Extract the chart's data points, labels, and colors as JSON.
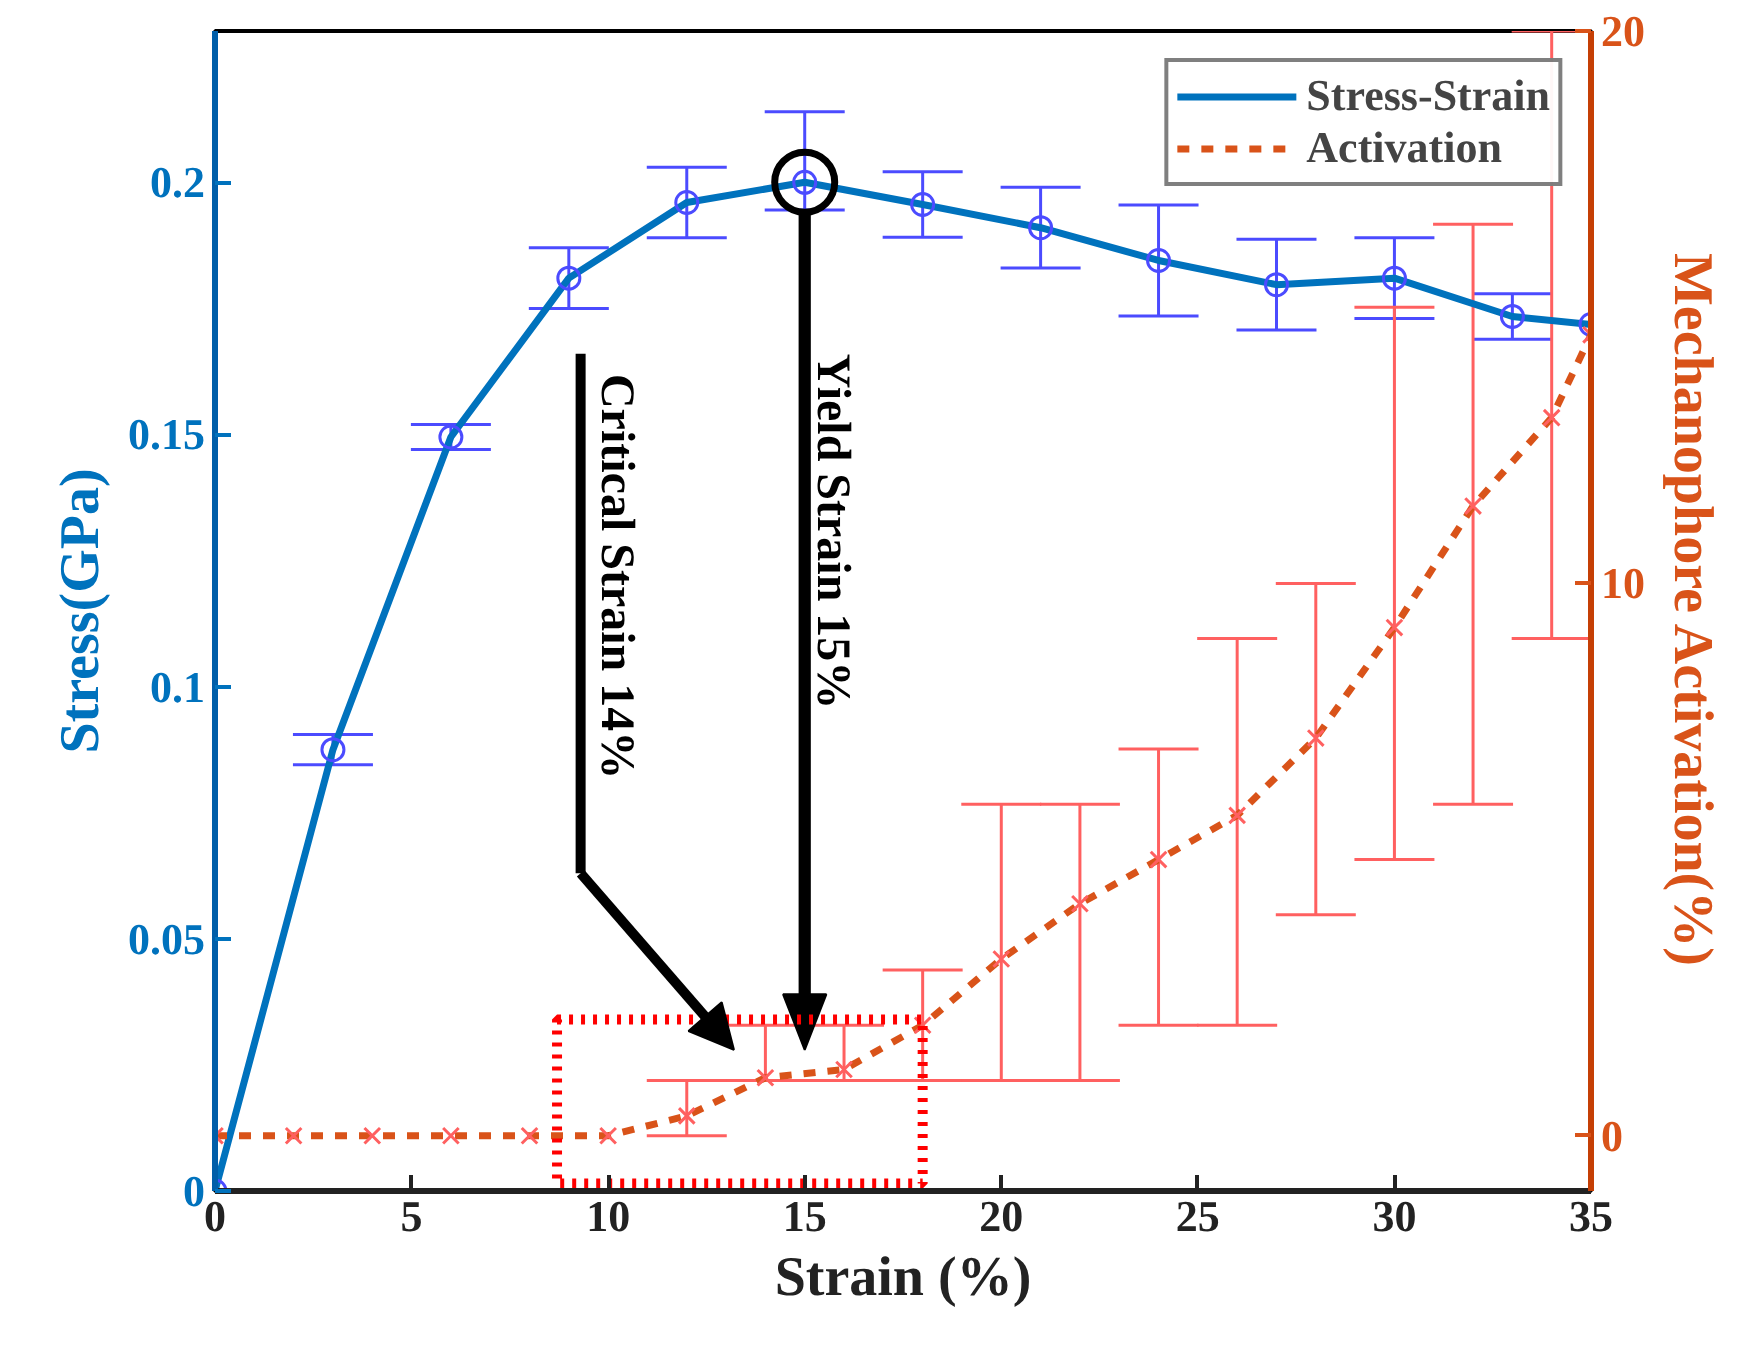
{
  "chart_data": {
    "type": "line",
    "xlabel": "Strain (%)",
    "ylabel": "Stress(GPa)",
    "y2label": "Mechanophore Activation(%)",
    "xlim": [
      0,
      35
    ],
    "xticks": [
      0,
      5,
      10,
      15,
      20,
      25,
      30,
      35
    ],
    "ylim": [
      0,
      0.23
    ],
    "yticks": [
      0,
      0.05,
      0.1,
      0.15,
      0.2
    ],
    "y2lim": [
      -1,
      20
    ],
    "y2ticks": [
      0,
      10,
      20
    ],
    "legend": "top right",
    "grid": false,
    "series": [
      {
        "name": "Stress-Strain",
        "color": "#0072bd",
        "marker": "circle",
        "line_style": "solid",
        "x": [
          0,
          3,
          6,
          9,
          12,
          15,
          18,
          21,
          24,
          27,
          30,
          33,
          35
        ],
        "values": [
          0,
          0.0875,
          0.1495,
          0.181,
          0.196,
          0.2,
          0.1956,
          0.191,
          0.1845,
          0.1797,
          0.181,
          0.1734,
          0.1718
        ],
        "errors": [
          null,
          0.003,
          0.0025,
          0.006,
          0.007,
          [
            0.1945,
            0.214
          ],
          0.0065,
          0.008,
          0.011,
          0.009,
          0.008,
          0.0045,
          null
        ]
      },
      {
        "name": "Activation",
        "color": "#d95319",
        "marker": "cross",
        "line_style": "dashed",
        "axis": "y2",
        "x": [
          0,
          2,
          4,
          6,
          8,
          10,
          12,
          14,
          16,
          18,
          20,
          22,
          24,
          26,
          28,
          30,
          32,
          34,
          35
        ],
        "values": [
          0,
          0,
          0,
          0,
          0,
          0,
          0.36,
          1.05,
          1.2,
          2.0,
          3.2,
          4.2,
          5.0,
          5.8,
          7.2,
          9.2,
          11.4,
          13,
          14.5
        ],
        "errors": [
          null,
          null,
          null,
          null,
          null,
          null,
          [
            0,
            1.0
          ],
          [
            1.0,
            2.0
          ],
          [
            1.0,
            2.0
          ],
          [
            1.0,
            3.0
          ],
          [
            1.0,
            6.0
          ],
          [
            1.0,
            6.0
          ],
          [
            2.0,
            7.0
          ],
          [
            2.0,
            9.0
          ],
          [
            4.0,
            10.0
          ],
          [
            5.0,
            15.0
          ],
          [
            6.0,
            16.5
          ],
          [
            9.0,
            20.0
          ],
          null
        ]
      }
    ],
    "annotations": [
      "Critical Strain 14%",
      "Yield Strain 15%"
    ]
  }
}
